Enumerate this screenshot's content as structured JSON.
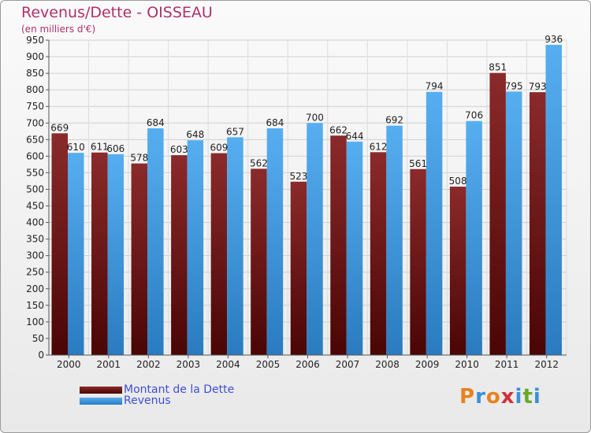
{
  "chart_data": {
    "type": "bar",
    "title": "Revenus/Dette - OISSEAU",
    "subtitle": "(en milliers d'€)",
    "categories": [
      "2000",
      "2001",
      "2002",
      "2003",
      "2004",
      "2005",
      "2006",
      "2007",
      "2008",
      "2009",
      "2010",
      "2011",
      "2012"
    ],
    "series": [
      {
        "name": "Montant de la Dette",
        "values": [
          669,
          611,
          578,
          603,
          609,
          562,
          523,
          662,
          612,
          561,
          508,
          851,
          793
        ],
        "color": "#7a1a1a"
      },
      {
        "name": "Revenus",
        "values": [
          610,
          606,
          684,
          648,
          657,
          684,
          700,
          644,
          692,
          794,
          706,
          795,
          936
        ],
        "color": "#3a96de"
      }
    ],
    "ylim": [
      0,
      950
    ],
    "yticks": [
      0,
      50,
      100,
      150,
      200,
      250,
      300,
      350,
      400,
      450,
      500,
      550,
      600,
      650,
      700,
      750,
      800,
      850,
      900,
      950
    ],
    "grid": true,
    "legend": "bottom-left"
  },
  "logo": {
    "text": "Proxiti",
    "letters": [
      {
        "ch": "P",
        "color": "#e8821e"
      },
      {
        "ch": "r",
        "color": "#3a8fd8"
      },
      {
        "ch": "o",
        "color": "#e8821e"
      },
      {
        "ch": "x",
        "color": "#d0303a"
      },
      {
        "ch": "i",
        "color": "#3a8fd8"
      },
      {
        "ch": "t",
        "color": "#6aa82a"
      },
      {
        "ch": "i",
        "color": "#3a8fd8"
      }
    ]
  }
}
